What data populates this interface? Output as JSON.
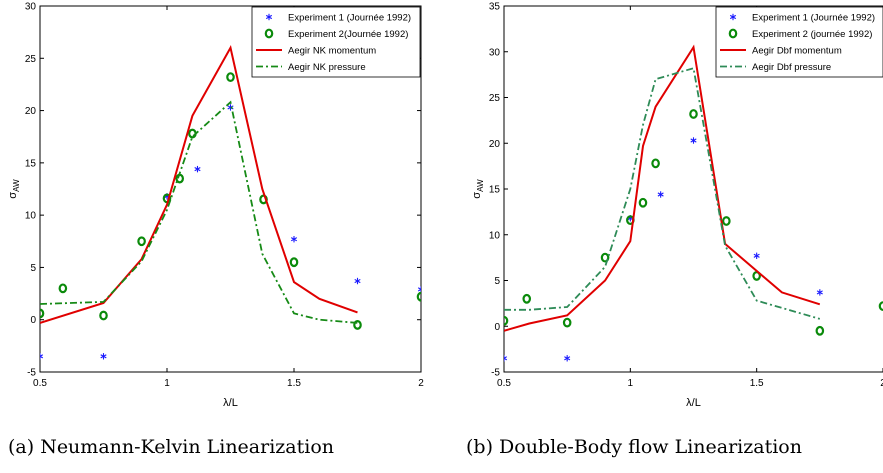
{
  "chart_data": [
    {
      "type": "line",
      "caption": "(a) Neumann-Kelvin Linearization",
      "xlabel_main": "λ/L",
      "ylabel_main": "σ",
      "ylabel_sub": "AW",
      "xlim": [
        0.5,
        2
      ],
      "ylim": [
        -5,
        30
      ],
      "xticks": [
        "0.5",
        "1",
        "1.5",
        "2"
      ],
      "yticks": [
        "-5",
        "0",
        "5",
        "10",
        "15",
        "20",
        "25",
        "30"
      ],
      "legend_position": "top-right",
      "series": [
        {
          "name": "Experiment 1 (Journée 1992)",
          "style": "star",
          "color": "#1a1aff",
          "x": [
            0.5,
            0.75,
            1.0,
            1.12,
            1.25,
            1.5,
            1.75,
            2.0
          ],
          "y": [
            -3.5,
            -3.5,
            11.8,
            14.4,
            20.3,
            7.7,
            3.7,
            2.9
          ]
        },
        {
          "name": "Experiment 2(Journée 1992)",
          "style": "circle",
          "color": "#0a8a0a",
          "x": [
            0.5,
            0.59,
            0.75,
            0.9,
            1.0,
            1.05,
            1.1,
            1.25,
            1.38,
            1.5,
            1.75,
            2.0
          ],
          "y": [
            0.6,
            3.0,
            0.4,
            7.5,
            11.6,
            13.5,
            17.8,
            23.2,
            11.5,
            5.5,
            -0.5,
            2.2
          ]
        },
        {
          "name": "Aegir NK momentum",
          "style": "solid",
          "color": "#e00000",
          "x": [
            0.5,
            0.75,
            0.9,
            1.0,
            1.1,
            1.25,
            1.375,
            1.5,
            1.6,
            1.75
          ],
          "y": [
            -0.3,
            1.6,
            5.8,
            11.0,
            19.5,
            26.0,
            12.5,
            3.6,
            2.0,
            0.7
          ]
        },
        {
          "name": "Aegir NK pressure",
          "style": "dashdot",
          "color": "#168a16",
          "x": [
            0.5,
            0.75,
            0.9,
            1.0,
            1.1,
            1.25,
            1.375,
            1.5,
            1.6,
            1.75
          ],
          "y": [
            1.5,
            1.7,
            5.6,
            10.5,
            17.5,
            20.8,
            6.3,
            0.6,
            0.0,
            -0.3
          ]
        }
      ]
    },
    {
      "type": "line",
      "caption": "(b) Double-Body flow Linearization",
      "xlabel_main": "λ/L",
      "ylabel_main": "σ",
      "ylabel_sub": "AW",
      "xlim": [
        0.5,
        2
      ],
      "ylim": [
        -5,
        35
      ],
      "xticks": [
        "0.5",
        "1",
        "1.5",
        "2"
      ],
      "yticks": [
        "-5",
        "0",
        "5",
        "10",
        "15",
        "20",
        "25",
        "30",
        "35"
      ],
      "legend_position": "top-right",
      "series": [
        {
          "name": "Experiment 1 (Journée 1992)",
          "style": "star",
          "color": "#1a1aff",
          "x": [
            0.5,
            0.75,
            1.0,
            1.12,
            1.25,
            1.5,
            1.75
          ],
          "y": [
            -3.5,
            -3.5,
            11.8,
            14.4,
            20.3,
            7.7,
            3.7
          ]
        },
        {
          "name": "Experiment 2 (journée 1992)",
          "style": "circle",
          "color": "#0a8a0a",
          "x": [
            0.5,
            0.59,
            0.75,
            0.9,
            1.0,
            1.05,
            1.1,
            1.25,
            1.38,
            1.5,
            1.75,
            2.0
          ],
          "y": [
            0.6,
            3.0,
            0.4,
            7.5,
            11.6,
            13.5,
            17.8,
            23.2,
            11.5,
            5.5,
            -0.5,
            2.2
          ]
        },
        {
          "name": "Aegir Dbf momentum",
          "style": "solid",
          "color": "#e00000",
          "x": [
            0.5,
            0.6,
            0.75,
            0.9,
            1.0,
            1.05,
            1.1,
            1.25,
            1.375,
            1.6,
            1.75
          ],
          "y": [
            -0.5,
            0.3,
            1.2,
            5.0,
            9.3,
            19.7,
            24.0,
            30.5,
            9.0,
            3.7,
            2.4
          ]
        },
        {
          "name": "Aegir Dbf pressure",
          "style": "dashdot",
          "color": "#2e8b57",
          "x": [
            0.5,
            0.6,
            0.75,
            0.9,
            1.0,
            1.05,
            1.1,
            1.25,
            1.375,
            1.5,
            1.75
          ],
          "y": [
            1.8,
            1.8,
            2.1,
            6.5,
            15.0,
            22.0,
            27.0,
            28.2,
            8.8,
            2.8,
            0.8
          ]
        }
      ]
    }
  ]
}
